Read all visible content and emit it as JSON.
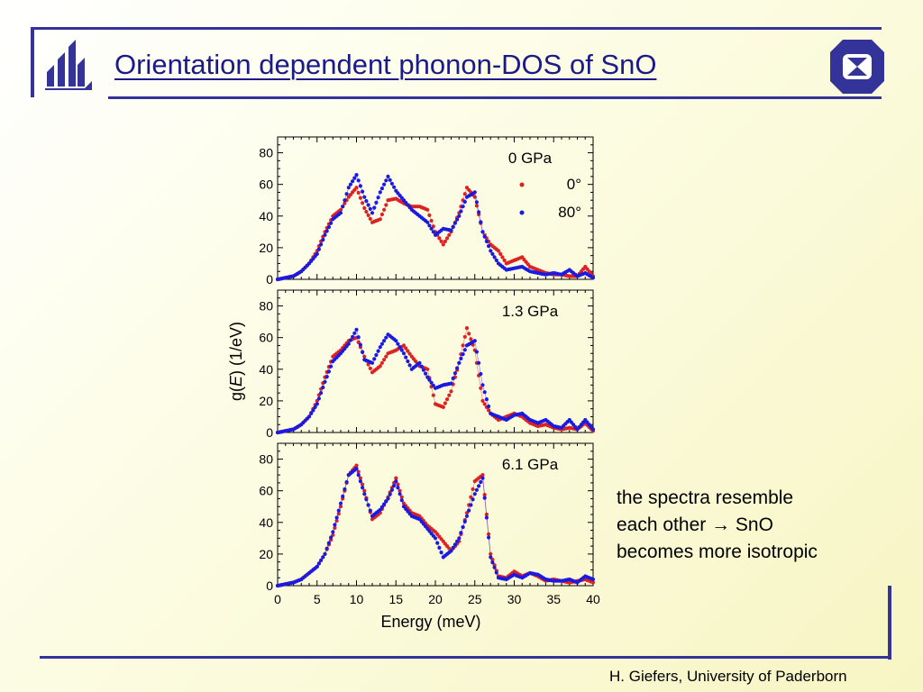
{
  "slide": {
    "title": "Orientation dependent phonon-DOS of SnO",
    "note_lines": [
      "the spectra resemble",
      "each other → SnO",
      "becomes more isotropic"
    ],
    "footer": "H. Giefers, University of Paderborn",
    "colors": {
      "frame": "#333399",
      "title": "#1a1a8a",
      "series_0deg": "#dd2222",
      "series_80deg": "#1a1ae0"
    },
    "icons": [
      "university-logo-icon",
      "hourglass-badge-icon"
    ]
  },
  "chart_data": {
    "type": "scatter",
    "xlabel": "Energy (meV)",
    "ylabel_parts": [
      "g(",
      "E",
      ") (1/eV)"
    ],
    "xlim": [
      0,
      40
    ],
    "ylim": [
      0,
      90
    ],
    "xticks": [
      0,
      5,
      10,
      15,
      20,
      25,
      30,
      35,
      40
    ],
    "yticks": [
      0,
      20,
      40,
      60,
      80
    ],
    "legend": {
      "position": "top-right",
      "entries": [
        "0°",
        "80°"
      ]
    },
    "panels": [
      {
        "label": "0 GPa",
        "series": [
          {
            "name": "0°",
            "color": "#dd2222",
            "x": [
              0,
              1,
              2,
              3,
              4,
              5,
              6,
              7,
              8,
              9,
              10,
              11,
              12,
              13,
              14,
              15,
              16,
              17,
              18,
              19,
              20,
              21,
              22,
              23,
              24,
              25,
              26,
              27,
              28,
              29,
              30,
              31,
              32,
              33,
              34,
              35,
              36,
              37,
              38,
              39,
              40
            ],
            "y": [
              0,
              1,
              2,
              5,
              10,
              18,
              30,
              40,
              44,
              52,
              58,
              45,
              36,
              38,
              50,
              51,
              48,
              46,
              46,
              44,
              30,
              22,
              30,
              42,
              58,
              52,
              30,
              22,
              18,
              10,
              12,
              14,
              8,
              6,
              4,
              3,
              3,
              2,
              2,
              8,
              2
            ]
          },
          {
            "name": "80°",
            "color": "#1a1ae0",
            "x": [
              0,
              1,
              2,
              3,
              4,
              5,
              6,
              7,
              8,
              9,
              10,
              11,
              12,
              13,
              14,
              15,
              16,
              17,
              18,
              19,
              20,
              21,
              22,
              23,
              24,
              25,
              26,
              27,
              28,
              29,
              30,
              31,
              32,
              33,
              34,
              35,
              36,
              37,
              38,
              39,
              40
            ],
            "y": [
              0,
              1,
              2,
              5,
              10,
              16,
              28,
              38,
              42,
              58,
              66,
              52,
              42,
              55,
              65,
              56,
              50,
              44,
              40,
              36,
              28,
              32,
              31,
              40,
              52,
              55,
              30,
              18,
              10,
              6,
              7,
              8,
              5,
              4,
              3,
              4,
              3,
              6,
              2,
              4,
              1
            ]
          }
        ]
      },
      {
        "label": "1.3 GPa",
        "series": [
          {
            "name": "0°",
            "color": "#dd2222",
            "x": [
              0,
              1,
              2,
              3,
              4,
              5,
              6,
              7,
              8,
              9,
              10,
              11,
              12,
              13,
              14,
              15,
              16,
              17,
              18,
              19,
              20,
              21,
              22,
              23,
              24,
              25,
              26,
              27,
              28,
              29,
              30,
              31,
              32,
              33,
              34,
              35,
              36,
              37,
              38,
              39,
              40
            ],
            "y": [
              0,
              1,
              2,
              5,
              10,
              20,
              35,
              48,
              52,
              58,
              60,
              48,
              38,
              42,
              50,
              52,
              55,
              48,
              42,
              40,
              18,
              16,
              26,
              44,
              66,
              52,
              20,
              12,
              8,
              10,
              12,
              10,
              6,
              4,
              5,
              3,
              2,
              3,
              2,
              6,
              1
            ]
          },
          {
            "name": "80°",
            "color": "#1a1ae0",
            "x": [
              0,
              1,
              2,
              3,
              4,
              5,
              6,
              7,
              8,
              9,
              10,
              11,
              12,
              13,
              14,
              15,
              16,
              17,
              18,
              19,
              20,
              21,
              22,
              23,
              24,
              25,
              26,
              27,
              28,
              29,
              30,
              31,
              32,
              33,
              34,
              35,
              36,
              37,
              38,
              39,
              40
            ],
            "y": [
              0,
              1,
              2,
              5,
              10,
              18,
              32,
              45,
              50,
              56,
              65,
              46,
              44,
              54,
              62,
              58,
              50,
              40,
              44,
              35,
              28,
              30,
              31,
              44,
              55,
              58,
              30,
              12,
              10,
              8,
              11,
              12,
              8,
              6,
              8,
              4,
              3,
              8,
              2,
              8,
              2
            ]
          }
        ]
      },
      {
        "label": "6.1 GPa",
        "series": [
          {
            "name": "0°",
            "color": "#dd2222",
            "x": [
              0,
              1,
              2,
              3,
              4,
              5,
              6,
              7,
              8,
              9,
              10,
              11,
              12,
              13,
              14,
              15,
              16,
              17,
              18,
              19,
              20,
              21,
              22,
              23,
              24,
              25,
              26,
              27,
              28,
              29,
              30,
              31,
              32,
              33,
              34,
              35,
              36,
              37,
              38,
              39,
              40
            ],
            "y": [
              0,
              1,
              2,
              4,
              8,
              12,
              20,
              32,
              50,
              70,
              76,
              60,
              42,
              46,
              56,
              68,
              52,
              46,
              44,
              38,
              34,
              28,
              22,
              28,
              46,
              66,
              70,
              20,
              6,
              5,
              9,
              6,
              8,
              6,
              3,
              4,
              3,
              2,
              3,
              4,
              2
            ]
          },
          {
            "name": "80°",
            "color": "#1a1ae0",
            "x": [
              0,
              1,
              2,
              3,
              4,
              5,
              6,
              7,
              8,
              9,
              10,
              11,
              12,
              13,
              14,
              15,
              16,
              17,
              18,
              19,
              20,
              21,
              22,
              23,
              24,
              25,
              26,
              27,
              28,
              29,
              30,
              31,
              32,
              33,
              34,
              35,
              36,
              37,
              38,
              39,
              40
            ],
            "y": [
              0,
              1,
              2,
              4,
              8,
              12,
              20,
              34,
              52,
              70,
              74,
              58,
              44,
              48,
              55,
              66,
              50,
              44,
              42,
              36,
              30,
              18,
              22,
              30,
              44,
              58,
              68,
              18,
              5,
              4,
              7,
              5,
              8,
              7,
              4,
              3,
              3,
              4,
              2,
              6,
              4
            ]
          }
        ]
      }
    ]
  }
}
